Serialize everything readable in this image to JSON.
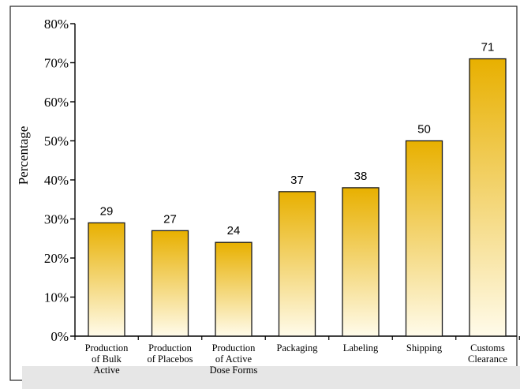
{
  "colors": {
    "bar_top": "#e8b000",
    "bar_bottom": "#fffbea",
    "bar_stroke": "#1a1a1a",
    "border": "#222222",
    "bottom_band": "#e6e6e6"
  },
  "chart_data": {
    "type": "bar",
    "title": "",
    "xlabel": "",
    "ylabel": "Percentage",
    "ylim": [
      0,
      80
    ],
    "yticks": [
      0,
      10,
      20,
      30,
      40,
      50,
      60,
      70,
      80
    ],
    "ytick_labels": [
      "0%",
      "10%",
      "20%",
      "30%",
      "40%",
      "50%",
      "60%",
      "70%",
      "80%"
    ],
    "grid": false,
    "legend": "none",
    "categories": [
      [
        "Production",
        "of Bulk",
        "Active"
      ],
      [
        "Production",
        "of Placebos"
      ],
      [
        "Production",
        "of Active",
        "Dose Forms"
      ],
      [
        "Packaging"
      ],
      [
        "Labeling"
      ],
      [
        "Shipping"
      ],
      [
        "Customs",
        "Clearance"
      ]
    ],
    "values": [
      29,
      27,
      24,
      37,
      38,
      50,
      71
    ],
    "data_labels": [
      "29",
      "27",
      "24",
      "37",
      "38",
      "50",
      "71"
    ]
  }
}
